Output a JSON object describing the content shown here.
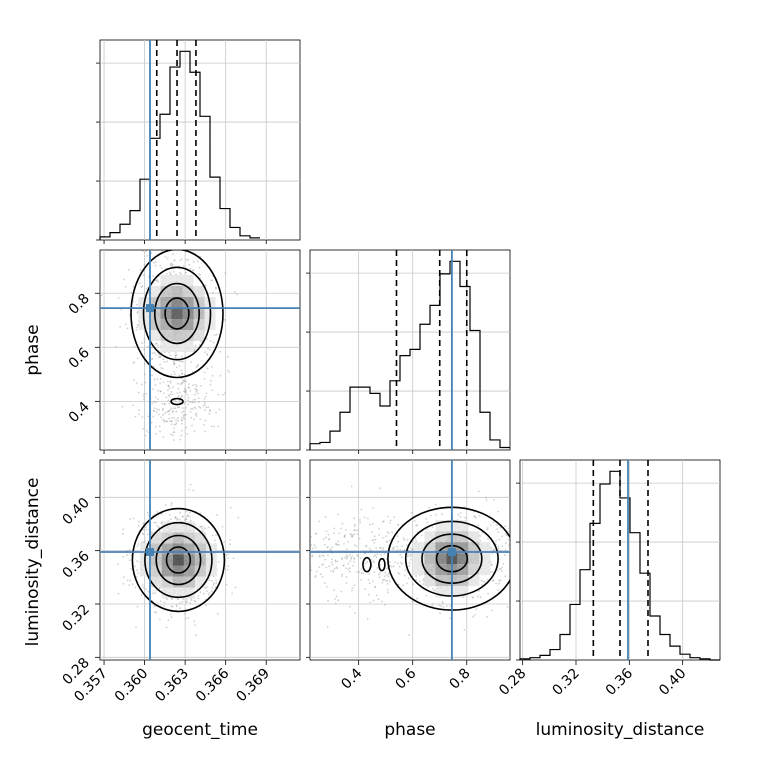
{
  "chart_data": {
    "type": "corner",
    "truth_color": "#4682b4",
    "parameters": [
      {
        "name": "geocent_time",
        "label": "geocent_time",
        "truth": 0.3604,
        "range": [
          0.3567,
          0.3715
        ],
        "ticks": [
          0.357,
          0.36,
          0.363,
          0.366,
          0.369
        ],
        "tick_labels": [
          "0.357",
          "0.360",
          "0.363",
          "0.366",
          "0.369"
        ],
        "quantiles": [
          0.3609,
          0.3624,
          0.3638
        ]
      },
      {
        "name": "phase",
        "label": "phase",
        "truth": 0.745,
        "range": [
          0.22,
          0.96
        ],
        "ticks": [
          0.4,
          0.6,
          0.8
        ],
        "tick_labels": [
          "0.4",
          "0.6",
          "0.8"
        ],
        "quantiles": [
          0.54,
          0.7,
          0.8
        ]
      },
      {
        "name": "luminosity_distance",
        "label": "luminosity_distance",
        "truth": 0.359,
        "range": [
          0.278,
          0.428
        ],
        "ticks": [
          0.28,
          0.32,
          0.36,
          0.4
        ],
        "tick_labels": [
          "0.28",
          "0.32",
          "0.36",
          "0.40"
        ],
        "quantiles": [
          0.333,
          0.353,
          0.374
        ]
      }
    ],
    "histograms": [
      {
        "param": "geocent_time",
        "bin_edges": [
          0.3567,
          0.35744,
          0.35818,
          0.35892,
          0.35966,
          0.3604,
          0.36114,
          0.36188,
          0.36262,
          0.36336,
          0.3641,
          0.36484,
          0.36558,
          0.36632,
          0.36706,
          0.3678,
          0.36854
        ],
        "counts": [
          3,
          7,
          15,
          28,
          58,
          97,
          120,
          165,
          180,
          160,
          118,
          60,
          30,
          12,
          4,
          2
        ]
      },
      {
        "param": "phase",
        "bin_edges": [
          0.22,
          0.257,
          0.294,
          0.331,
          0.368,
          0.405,
          0.442,
          0.479,
          0.516,
          0.553,
          0.59,
          0.627,
          0.664,
          0.701,
          0.738,
          0.775,
          0.812,
          0.849,
          0.886,
          0.923,
          0.96
        ],
        "counts": [
          5,
          6,
          15,
          30,
          50,
          50,
          45,
          35,
          55,
          75,
          80,
          100,
          115,
          140,
          150,
          130,
          95,
          30,
          8,
          2
        ]
      },
      {
        "param": "luminosity_distance",
        "bin_edges": [
          0.278,
          0.2855,
          0.293,
          0.3005,
          0.308,
          0.3155,
          0.323,
          0.3305,
          0.338,
          0.3455,
          0.353,
          0.3605,
          0.368,
          0.3755,
          0.383,
          0.3905,
          0.398,
          0.4055,
          0.413,
          0.4205,
          0.428
        ],
        "counts": [
          1,
          2,
          4,
          9,
          22,
          48,
          78,
          118,
          152,
          163,
          140,
          110,
          75,
          38,
          22,
          12,
          5,
          2,
          1,
          0
        ]
      }
    ],
    "scatter_blocks": [
      {
        "x": "geocent_time",
        "y": "phase",
        "peak": [
          0.3624,
          0.725
        ],
        "contour_levels": 4
      },
      {
        "x": "geocent_time",
        "y": "luminosity_distance",
        "peak": [
          0.3625,
          0.353
        ],
        "contour_levels": 4
      },
      {
        "x": "phase",
        "y": "luminosity_distance",
        "peak": [
          0.745,
          0.354
        ],
        "contour_levels": 4
      }
    ]
  }
}
